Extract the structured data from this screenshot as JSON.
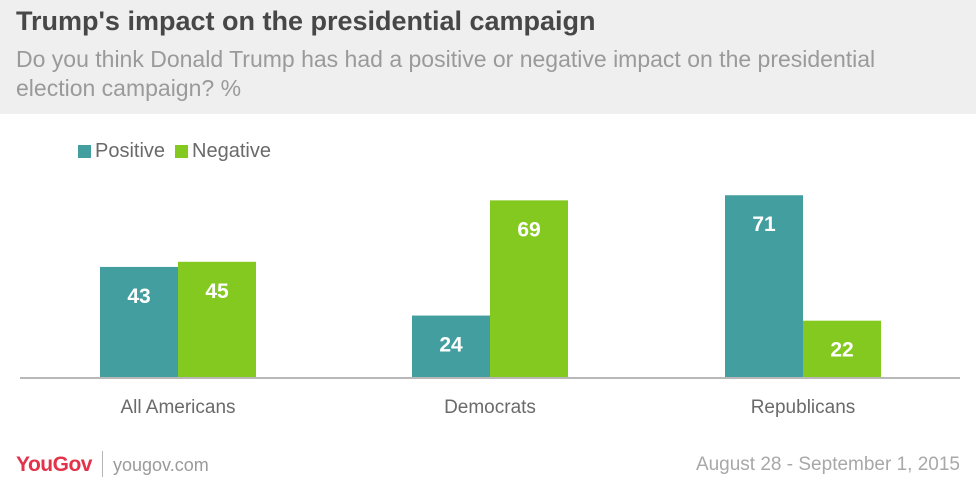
{
  "header": {
    "title": "Trump's impact on the presidential campaign",
    "subtitle": "Do you think Donald Trump has had a positive or negative impact on the presidential election campaign? %"
  },
  "chart_data": {
    "type": "bar",
    "categories": [
      "All Americans",
      "Democrats",
      "Republicans"
    ],
    "series": [
      {
        "name": "Positive",
        "values": [
          43,
          24,
          71
        ],
        "color": "#439ea0"
      },
      {
        "name": "Negative",
        "values": [
          45,
          69,
          22
        ],
        "color": "#84c91f"
      }
    ],
    "ylim": [
      0,
      75
    ],
    "grid": false,
    "legend_position": "top-left",
    "data_labels": true
  },
  "footer": {
    "brand": "YouGov",
    "site": "yougov.com",
    "date": "August 28 - September 1, 2015"
  }
}
